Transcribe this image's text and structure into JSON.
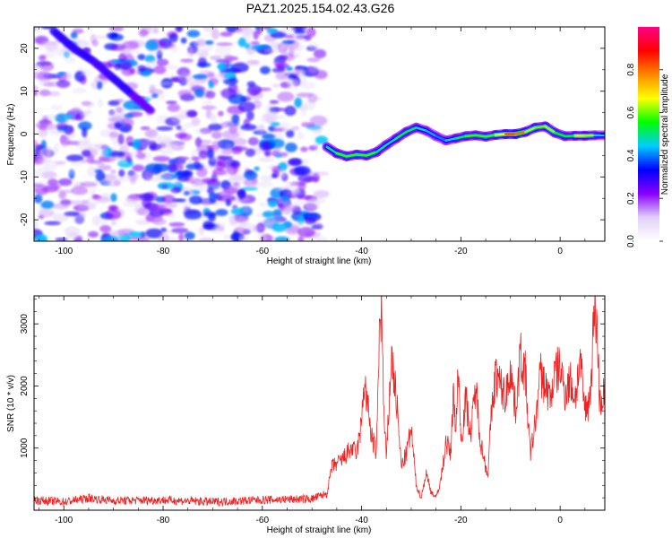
{
  "title": "PAZ1.2025.154.02.43.G26",
  "chart_data": [
    {
      "type": "heatmap",
      "xlabel": "Height of straight line (km)",
      "ylabel": "Frequency (Hz)",
      "xlim": [
        -106,
        9
      ],
      "ylim": [
        -25,
        25
      ],
      "xticks": [
        -100,
        -80,
        -60,
        -40,
        -20,
        0
      ],
      "yticks": [
        -20,
        -10,
        0,
        10,
        20
      ],
      "colorbar": {
        "label": "Normalized spectral amplitude",
        "ticks": [
          0.0,
          0.2,
          0.4,
          0.6,
          0.8
        ],
        "tick_labels": [
          "0.0",
          "0.2",
          "0.4",
          "0.6",
          "0.8"
        ],
        "range": [
          0,
          1
        ],
        "colormap": [
          "#ffffff",
          "#e0d0f8",
          "#8800ff",
          "#0000ff",
          "#00ccff",
          "#00ff00",
          "#ffff00",
          "#ff8800",
          "#ff0000",
          "#ff0088"
        ]
      },
      "ridge": {
        "x": [
          -47,
          -45,
          -43,
          -41,
          -39,
          -37,
          -35,
          -33,
          -31,
          -29,
          -27,
          -25,
          -23,
          -21,
          -19,
          -17,
          -15,
          -13,
          -11,
          -9,
          -7,
          -5,
          -3,
          -1,
          1,
          3,
          5,
          7,
          9
        ],
        "y": [
          -3,
          -4.5,
          -5.2,
          -4.8,
          -5.0,
          -4.2,
          -2.5,
          -1.0,
          0.5,
          1.5,
          0.8,
          -0.5,
          -1.5,
          -1.0,
          -0.5,
          -0.3,
          -0.6,
          -0.2,
          0.0,
          0.0,
          0.5,
          1.5,
          1.8,
          0.3,
          -0.5,
          -0.4,
          -0.4,
          -0.3,
          -0.3
        ],
        "amplitude": [
          0.45,
          0.55,
          0.6,
          0.55,
          0.6,
          0.55,
          0.45,
          0.5,
          0.55,
          0.5,
          0.45,
          0.4,
          0.4,
          0.5,
          0.55,
          0.6,
          0.55,
          0.6,
          0.75,
          0.9,
          0.7,
          0.55,
          0.65,
          0.6,
          0.5,
          0.55,
          0.75,
          0.5,
          0.4
        ]
      },
      "streak": {
        "x": [
          -102,
          -98,
          -94,
          -90,
          -86,
          -82
        ],
        "y": [
          24,
          20,
          17,
          13,
          9,
          5
        ],
        "amplitude": [
          0.3,
          0.3,
          0.28,
          0.3,
          0.25,
          0.3
        ]
      },
      "noise_region_x": [
        -106,
        -48
      ],
      "legend": "none"
    },
    {
      "type": "line",
      "xlabel": "Height of straight line (km)",
      "ylabel": "SNR (10 * v/v)",
      "xlim": [
        -106,
        9
      ],
      "ylim": [
        0,
        3450
      ],
      "xticks": [
        -100,
        -80,
        -60,
        -40,
        -20,
        0
      ],
      "yticks": [
        1000,
        2000,
        3000
      ],
      "series": [
        {
          "color": "#ee2222",
          "x": [
            -106,
            -100,
            -95,
            -90,
            -80,
            -70,
            -60,
            -50,
            -47,
            -46,
            -44,
            -42,
            -41,
            -40,
            -39.5,
            -38,
            -37,
            -36.5,
            -36,
            -35.5,
            -35,
            -34,
            -33,
            -32,
            -31,
            -30,
            -29,
            -28,
            -27,
            -26,
            -25,
            -24,
            -23,
            -22,
            -21.5,
            -21,
            -20.5,
            -20,
            -19,
            -18,
            -17,
            -16,
            -15,
            -14.5,
            -14,
            -13,
            -12,
            -11,
            -10,
            -9,
            -8,
            -7,
            -6.5,
            -6,
            -5,
            -4,
            -3,
            -2,
            -1,
            0,
            1,
            2,
            3,
            4,
            5,
            6,
            7,
            7.5,
            8,
            9
          ],
          "y": [
            150,
            120,
            180,
            140,
            150,
            120,
            150,
            170,
            250,
            700,
            800,
            1000,
            900,
            1400,
            2100,
            1200,
            900,
            2700,
            3300,
            1500,
            800,
            2500,
            1800,
            700,
            900,
            1300,
            400,
            200,
            600,
            300,
            200,
            500,
            1100,
            900,
            2000,
            1200,
            2400,
            1100,
            1800,
            1200,
            2000,
            1100,
            700,
            600,
            1400,
            2200,
            2000,
            1800,
            2300,
            1600,
            2500,
            2200,
            1500,
            900,
            1400,
            2200,
            2000,
            1800,
            2200,
            2300,
            1900,
            2100,
            1800,
            2400,
            1600,
            1800,
            3400,
            2800,
            1700,
            1900
          ]
        }
      ],
      "legend": "none"
    }
  ]
}
